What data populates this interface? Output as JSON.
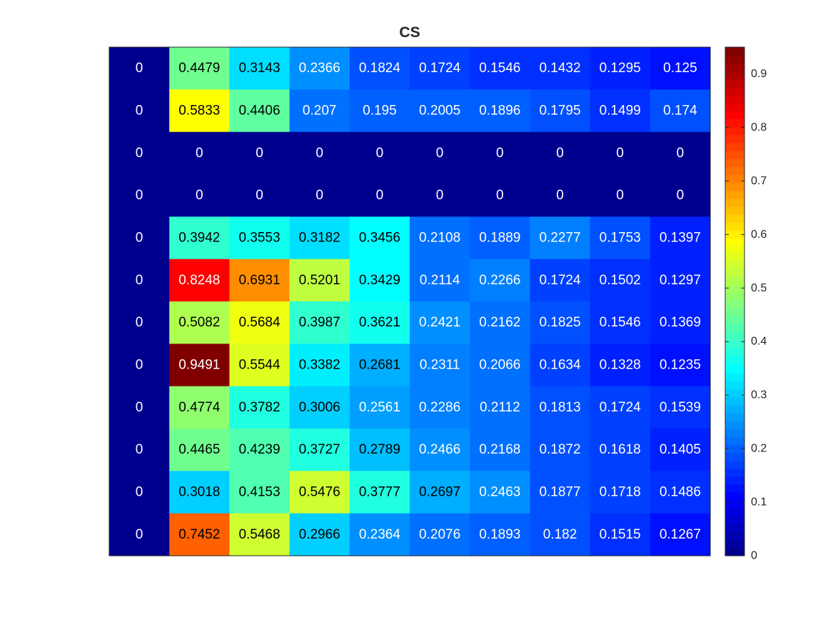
{
  "chart_data": {
    "type": "heatmap",
    "title": "CS",
    "colormap": "jet",
    "clim": [
      0,
      0.9491
    ],
    "show_cell_labels": true,
    "show_axis_ticks": false,
    "rows": 12,
    "columns": 10,
    "values": [
      [
        0,
        0.4479,
        0.3143,
        0.2366,
        0.1824,
        0.1724,
        0.1546,
        0.1432,
        0.1295,
        0.125
      ],
      [
        0,
        0.5833,
        0.4406,
        0.207,
        0.195,
        0.2005,
        0.1896,
        0.1795,
        0.1499,
        0.174
      ],
      [
        0,
        0,
        0,
        0,
        0,
        0,
        0,
        0,
        0,
        0
      ],
      [
        0,
        0,
        0,
        0,
        0,
        0,
        0,
        0,
        0,
        0
      ],
      [
        0,
        0.3942,
        0.3553,
        0.3182,
        0.3456,
        0.2108,
        0.1889,
        0.2277,
        0.1753,
        0.1397
      ],
      [
        0,
        0.8248,
        0.6931,
        0.5201,
        0.3429,
        0.2114,
        0.2266,
        0.1724,
        0.1502,
        0.1297
      ],
      [
        0,
        0.5082,
        0.5684,
        0.3987,
        0.3621,
        0.2421,
        0.2162,
        0.1825,
        0.1546,
        0.1369
      ],
      [
        0,
        0.9491,
        0.5544,
        0.3382,
        0.2681,
        0.2311,
        0.2066,
        0.1634,
        0.1328,
        0.1235
      ],
      [
        0,
        0.4774,
        0.3782,
        0.3006,
        0.2561,
        0.2286,
        0.2112,
        0.1813,
        0.1724,
        0.1539
      ],
      [
        0,
        0.4465,
        0.4239,
        0.3727,
        0.2789,
        0.2466,
        0.2168,
        0.1872,
        0.1618,
        0.1405
      ],
      [
        0,
        0.3018,
        0.4153,
        0.5476,
        0.3777,
        0.2697,
        0.2463,
        0.1877,
        0.1718,
        0.1486
      ],
      [
        0,
        0.7452,
        0.5468,
        0.2966,
        0.2364,
        0.2076,
        0.1893,
        0.182,
        0.1515,
        0.1267
      ]
    ],
    "colorbar": {
      "range": [
        0,
        0.95
      ],
      "ticks": [
        0,
        0.1,
        0.2,
        0.3,
        0.4,
        0.5,
        0.6,
        0.7,
        0.8,
        0.9
      ],
      "tick_labels": [
        "0",
        "0.1",
        "0.2",
        "0.3",
        "0.4",
        "0.5",
        "0.6",
        "0.7",
        "0.8",
        "0.9"
      ]
    }
  }
}
